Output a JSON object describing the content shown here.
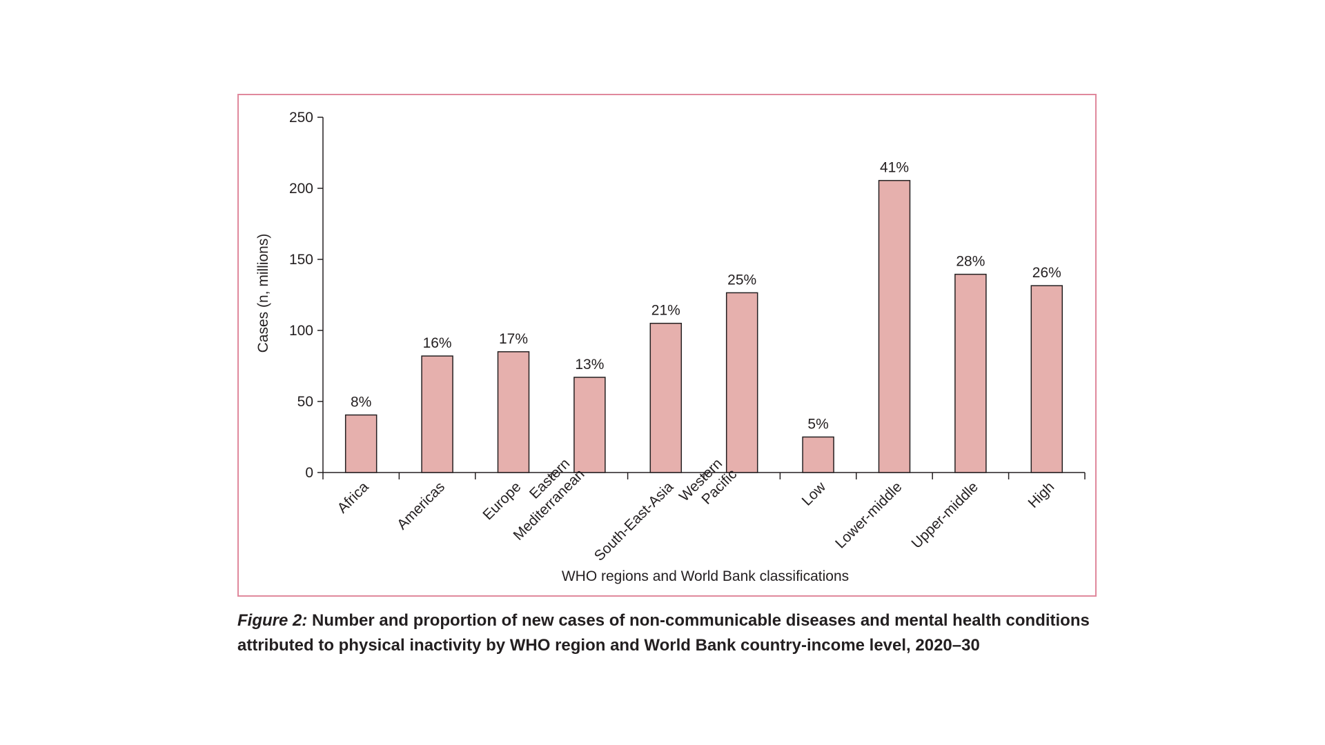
{
  "chart_data": {
    "type": "bar",
    "categories": [
      [
        "Africa"
      ],
      [
        "Americas"
      ],
      [
        "Europe"
      ],
      [
        "Eastern",
        "Mediterranean"
      ],
      [
        "South-East-Asia"
      ],
      [
        "Western",
        "Pacific"
      ],
      [
        "Low"
      ],
      [
        "Lower-middle"
      ],
      [
        "Upper-middle"
      ],
      [
        "High"
      ]
    ],
    "values": [
      40.5,
      82,
      85,
      67,
      105,
      126.5,
      25,
      205.5,
      139.5,
      131.5
    ],
    "data_labels": [
      "8%",
      "16%",
      "17%",
      "13%",
      "21%",
      "25%",
      "5%",
      "41%",
      "28%",
      "26%"
    ],
    "xlabel": "WHO regions and World Bank classifications",
    "ylabel": "Cases  (n, millions)",
    "ylim": [
      0,
      250
    ],
    "yticks": [
      0,
      50,
      100,
      150,
      200,
      250
    ],
    "grid": false,
    "bar_color": "#e6b0ad",
    "bar_edge_color": "#231f20",
    "frame_color": "#e0889c"
  },
  "caption": {
    "label": "Figure 2:",
    "line1": " Number and proportion of new cases of non-communicable diseases and mental health conditions",
    "line2": "attributed to physical inactivity by WHO region and World Bank country-income level, 2020–30"
  }
}
